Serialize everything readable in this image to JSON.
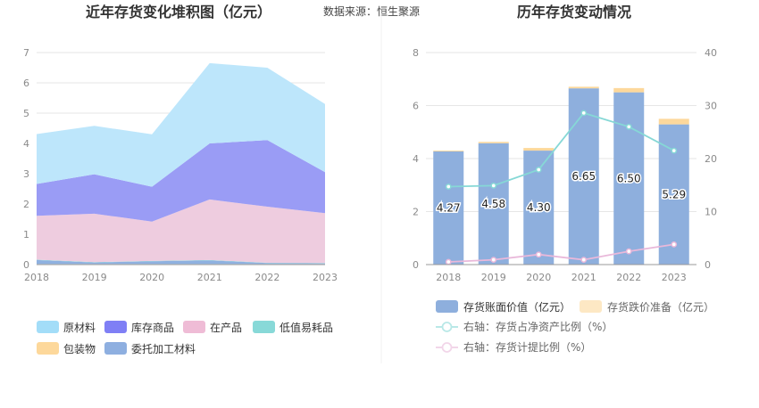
{
  "source_text": "数据来源：恒生聚源",
  "chart_data": [
    {
      "type": "area",
      "title": "近年存货变化堆积图（亿元）",
      "categories": [
        "2018",
        "2019",
        "2020",
        "2021",
        "2022",
        "2023"
      ],
      "ylim": [
        0,
        7
      ],
      "yticks": [
        "0",
        "1",
        "2",
        "3",
        "4",
        "5",
        "6",
        "7"
      ],
      "stacked": true,
      "series": [
        {
          "name": "包装物",
          "color": "#fcd89a",
          "values": [
            0.02,
            0.02,
            0.02,
            0.02,
            0.02,
            0.02
          ]
        },
        {
          "name": "委托加工材料",
          "color": "#8fb1e0",
          "values": [
            0.13,
            0.05,
            0.09,
            0.12,
            0.03,
            0.02
          ]
        },
        {
          "name": "低值易耗品",
          "color": "#86d8d6",
          "values": [
            0.01,
            0.01,
            0.01,
            0.01,
            0.01,
            0.01
          ]
        },
        {
          "name": "在产品",
          "color": "#eeccdf",
          "values": [
            1.45,
            1.6,
            1.3,
            2.0,
            1.85,
            1.65
          ]
        },
        {
          "name": "库存商品",
          "color": "#9a9cf5",
          "values": [
            1.05,
            1.3,
            1.15,
            1.85,
            2.2,
            1.35
          ]
        },
        {
          "name": "原材料",
          "color": "#bde6fb",
          "values": [
            1.65,
            1.6,
            1.73,
            2.65,
            2.39,
            2.25
          ]
        }
      ],
      "legend": [
        "原材料",
        "库存商品",
        "在产品",
        "低值易耗品",
        "包装物",
        "委托加工材料"
      ],
      "legend_colors": {
        "原材料": "#a3ddf8",
        "库存商品": "#7f7ff5",
        "在产品": "#efbcd6",
        "低值易耗品": "#88d9d8",
        "包装物": "#fdd89b",
        "委托加工材料": "#8eafe0"
      },
      "legend_position": "bottom"
    },
    {
      "type": "bar",
      "title": "历年存货变动情况",
      "categories": [
        "2018",
        "2019",
        "2020",
        "2021",
        "2022",
        "2023"
      ],
      "ylim": [
        0,
        8
      ],
      "yticks": [
        "0",
        "2",
        "4",
        "6",
        "8"
      ],
      "y2lim": [
        0,
        40
      ],
      "y2ticks": [
        "0",
        "10",
        "20",
        "30",
        "40"
      ],
      "bar_series": [
        {
          "name": "存货账面价值（亿元）",
          "color": "#8eafdd",
          "values": [
            4.27,
            4.58,
            4.3,
            6.65,
            6.5,
            5.29
          ],
          "labels": [
            "4.27",
            "4.58",
            "4.30",
            "6.65",
            "6.50",
            "5.29"
          ]
        },
        {
          "name": "存货跌价准备（亿元）",
          "color": "#fdd89b",
          "values": [
            0.03,
            0.05,
            0.1,
            0.06,
            0.16,
            0.21
          ]
        }
      ],
      "line_series": [
        {
          "name": "右轴：存货占净资产比例（%）",
          "color": "#86d8d6",
          "axis": "right",
          "values": [
            14.7,
            14.9,
            17.9,
            28.6,
            26.0,
            21.5
          ]
        },
        {
          "name": "右轴：存货计提比例（%）",
          "color": "#e9b8da",
          "axis": "right",
          "values": [
            0.5,
            0.9,
            1.9,
            0.9,
            2.5,
            3.8
          ]
        }
      ],
      "legend_position": "bottom"
    }
  ]
}
